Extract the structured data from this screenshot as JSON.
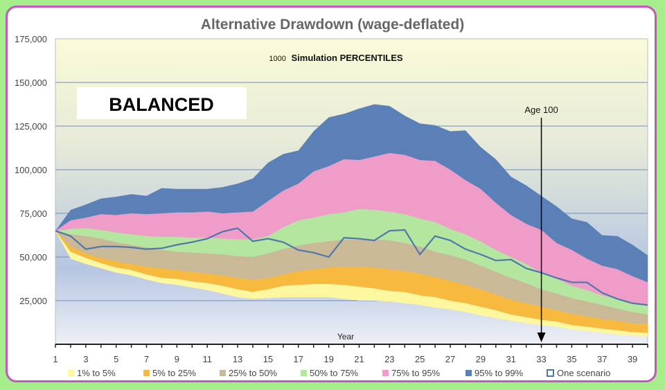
{
  "chart_data": {
    "type": "area",
    "title": "Alternative Drawdown (wage-deflated)",
    "subtitle_count": "1000",
    "subtitle": "Simulation  PERCENTILES",
    "xlabel": "Year",
    "ylabel": "",
    "badge": "BALANCED",
    "annotation": {
      "text": "Age 100",
      "x": 33
    },
    "xlim": [
      1,
      40
    ],
    "ylim": [
      0,
      175000
    ],
    "x_ticks": [
      1,
      3,
      5,
      7,
      9,
      11,
      13,
      15,
      17,
      19,
      21,
      23,
      25,
      27,
      29,
      31,
      33,
      35,
      37,
      39
    ],
    "y_ticks": [
      25000,
      50000,
      75000,
      100000,
      125000,
      150000,
      175000
    ],
    "y_tick_labels": [
      "25,000",
      "50,000",
      "75,000",
      "100,000",
      "125,000",
      "150,000",
      "175,000"
    ],
    "grid": "horizontal",
    "legend_position": "bottom",
    "x": [
      1,
      2,
      3,
      4,
      5,
      6,
      7,
      8,
      9,
      10,
      11,
      12,
      13,
      14,
      15,
      16,
      17,
      18,
      19,
      20,
      21,
      22,
      23,
      24,
      25,
      26,
      27,
      28,
      29,
      30,
      31,
      32,
      33,
      34,
      35,
      36,
      37,
      38,
      39,
      40
    ],
    "percentiles": {
      "p1": [
        65000,
        49000,
        46000,
        43500,
        41000,
        39500,
        37000,
        35000,
        34000,
        32500,
        31000,
        29000,
        27000,
        26000,
        26500,
        27000,
        27000,
        27000,
        27000,
        26000,
        25000,
        25000,
        24500,
        23500,
        22500,
        21000,
        20000,
        18500,
        16500,
        15000,
        13500,
        12000,
        11000,
        10000,
        8500,
        7500,
        6500,
        5500,
        5000,
        4500
      ],
      "p5": [
        65000,
        53000,
        49500,
        46500,
        44000,
        42500,
        40000,
        38000,
        37500,
        36000,
        35000,
        33500,
        31500,
        30000,
        31500,
        33500,
        34000,
        34500,
        34500,
        34000,
        33000,
        32000,
        30500,
        30000,
        28000,
        27000,
        25000,
        23500,
        21500,
        19500,
        17000,
        15500,
        14000,
        13000,
        11000,
        10000,
        9000,
        8000,
        7000,
        6500
      ],
      "p25": [
        65000,
        56000,
        52000,
        49500,
        47500,
        46000,
        44500,
        43500,
        42500,
        41500,
        40500,
        39500,
        38000,
        37000,
        38000,
        40000,
        42000,
        43000,
        44000,
        44500,
        44500,
        44000,
        43000,
        42000,
        40500,
        38500,
        36500,
        34000,
        31500,
        28500,
        25500,
        23500,
        21500,
        19500,
        17500,
        16000,
        14500,
        13500,
        12000,
        11500
      ],
      "p50": [
        65000,
        63000,
        62000,
        60500,
        58500,
        57000,
        55500,
        54000,
        53000,
        52500,
        52000,
        51500,
        50500,
        50000,
        52000,
        54500,
        56500,
        58000,
        59000,
        60000,
        60000,
        60000,
        59500,
        58000,
        56000,
        53000,
        51000,
        48500,
        45000,
        41500,
        38000,
        35000,
        31500,
        29000,
        26500,
        24500,
        22500,
        20500,
        18500,
        17000
      ],
      "p75": [
        65000,
        66000,
        66500,
        65500,
        64000,
        63000,
        62000,
        61500,
        61500,
        61000,
        61000,
        60500,
        60000,
        60000,
        62000,
        67000,
        71000,
        72500,
        74500,
        75500,
        77500,
        77000,
        76000,
        74500,
        72000,
        70000,
        66000,
        63000,
        59000,
        54000,
        50000,
        46000,
        41000,
        37500,
        33500,
        31000,
        28000,
        26000,
        23500,
        22000
      ],
      "p95": [
        65000,
        71000,
        72500,
        74500,
        74000,
        75000,
        74500,
        75000,
        75500,
        75500,
        76000,
        75000,
        75500,
        76000,
        82000,
        88000,
        92000,
        99000,
        102000,
        106000,
        105500,
        107500,
        109500,
        108500,
        105500,
        105000,
        100000,
        94000,
        89000,
        81000,
        74000,
        69000,
        65500,
        58000,
        54000,
        49000,
        45000,
        43000,
        39000,
        35500
      ],
      "p99": [
        65000,
        77000,
        80000,
        83500,
        84500,
        86000,
        85000,
        89500,
        89000,
        89000,
        89000,
        90000,
        92000,
        95000,
        104000,
        109000,
        111000,
        122000,
        130000,
        132000,
        135000,
        137500,
        136500,
        131000,
        126500,
        125500,
        122000,
        122500,
        113000,
        106000,
        96000,
        91000,
        85000,
        79000,
        72000,
        70000,
        62500,
        62000,
        57000,
        51000
      ]
    },
    "series": [
      {
        "name": "1% to 5%",
        "lower": "p1",
        "upper": "p5",
        "color": "#fdf8a0"
      },
      {
        "name": "5% to 25%",
        "lower": "p5",
        "upper": "p25",
        "color": "#f7ba3e"
      },
      {
        "name": "25% to 50%",
        "lower": "p25",
        "upper": "p50",
        "color": "#c9b996"
      },
      {
        "name": "50% to 75%",
        "lower": "p50",
        "upper": "p75",
        "color": "#b4e6a0"
      },
      {
        "name": "75% to 95%",
        "lower": "p75",
        "upper": "p95",
        "color": "#f09cc8"
      },
      {
        "name": "95% to 99%",
        "lower": "p95",
        "upper": "p99",
        "color": "#5b80b8"
      }
    ],
    "scenario": {
      "name": "One scenario",
      "color": "#4f77ac",
      "values": [
        65000,
        62000,
        54500,
        56000,
        56000,
        55500,
        54500,
        55000,
        57000,
        58500,
        60500,
        64500,
        66500,
        59000,
        60500,
        58500,
        54000,
        52500,
        50000,
        61000,
        60500,
        59500,
        65000,
        65500,
        51500,
        62000,
        59500,
        54500,
        51500,
        48000,
        48500,
        43500,
        41000,
        38000,
        35500,
        35500,
        29500,
        26000,
        23500,
        22500
      ]
    }
  }
}
